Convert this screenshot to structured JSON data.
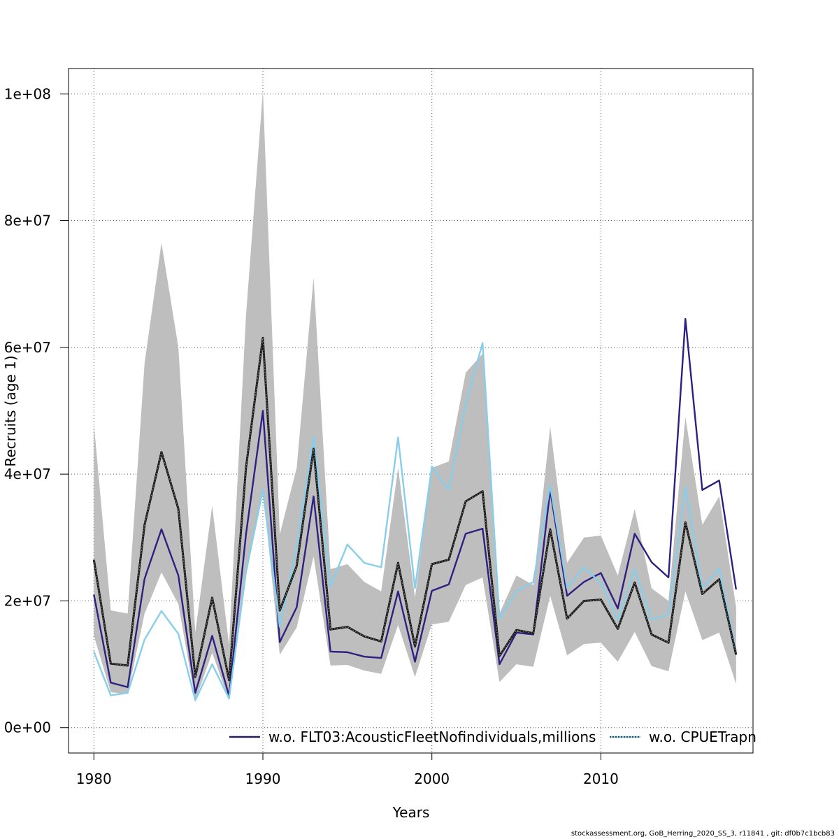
{
  "footer": "stockassessment.org, GoB_Herring_2020_SS_3, r11841 , git: df0b7c1bcb83",
  "colors": {
    "band": "#bebebe",
    "base": "#1a1a1a",
    "series1": "#2e2081",
    "series2": "#87ceeb",
    "grid": "#555555"
  },
  "chart_data": {
    "type": "line",
    "xlabel": "Years",
    "ylabel": "Recruits (age 1)",
    "xlim": [
      1978.5,
      2019
    ],
    "ylim": [
      -4000000,
      104000000
    ],
    "xticks": [
      1980,
      1990,
      2000,
      2010
    ],
    "yticks": [
      0,
      20000000,
      40000000,
      60000000,
      80000000,
      100000000
    ],
    "ytick_labels": [
      "0e+00",
      "2e+07",
      "4e+07",
      "6e+07",
      "8e+07",
      "1e+08"
    ],
    "grid": true,
    "legend_position": "bottom-right",
    "x": [
      1980,
      1981,
      1982,
      1983,
      1984,
      1985,
      1986,
      1987,
      1988,
      1989,
      1990,
      1991,
      1992,
      1993,
      1994,
      1995,
      1996,
      1997,
      1998,
      1999,
      2000,
      2001,
      2002,
      2003,
      2004,
      2005,
      2006,
      2007,
      2008,
      2009,
      2010,
      2011,
      2012,
      2013,
      2014,
      2015,
      2016,
      2017,
      2018
    ],
    "band_upper": [
      48000000,
      18500000,
      18000000,
      57500000,
      76500000,
      60000000,
      15000000,
      35000000,
      13000000,
      65000000,
      100500000,
      30500000,
      41000000,
      71000000,
      25000000,
      25800000,
      23000000,
      21500000,
      41000000,
      20500000,
      41000000,
      42000000,
      56000000,
      59000000,
      18000000,
      24000000,
      22500000,
      47500000,
      26000000,
      30000000,
      30300000,
      24000000,
      34500000,
      22000000,
      20000000,
      49000000,
      32000000,
      36500000,
      19000000
    ],
    "band_lower": [
      14500000,
      5600000,
      5300000,
      18000000,
      24500000,
      19500000,
      4300000,
      11800000,
      4300000,
      25000000,
      37500000,
      11500000,
      15800000,
      27000000,
      9800000,
      9900000,
      9000000,
      8500000,
      16200000,
      8000000,
      16300000,
      16700000,
      22500000,
      23700000,
      7200000,
      10000000,
      9600000,
      20800000,
      11400000,
      13200000,
      13400000,
      10400000,
      15100000,
      9700000,
      8900000,
      21500000,
      13800000,
      15000000,
      6900000
    ],
    "series": [
      {
        "name": "",
        "values": [
          26500000,
          10100000,
          9800000,
          32000000,
          43500000,
          34500000,
          8000000,
          20500000,
          7500000,
          41000000,
          61500000,
          18500000,
          25500000,
          44000000,
          15500000,
          15900000,
          14400000,
          13600000,
          26000000,
          12800000,
          25800000,
          26500000,
          35700000,
          37300000,
          11300000,
          15400000,
          14900000,
          31300000,
          17200000,
          20000000,
          20200000,
          15600000,
          22900000,
          14700000,
          13400000,
          32400000,
          21100000,
          23400000,
          11500000
        ]
      },
      {
        "name": "w.o. FLT03:AcousticFleetNofindividuals,millions",
        "values": [
          21000000,
          7100000,
          6400000,
          23500000,
          31300000,
          24000000,
          5500000,
          14500000,
          5000000,
          30500000,
          50000000,
          13500000,
          19000000,
          36500000,
          12000000,
          11900000,
          11200000,
          11000000,
          21500000,
          10400000,
          21600000,
          22600000,
          30600000,
          31400000,
          10000000,
          15000000,
          14700000,
          37500000,
          20800000,
          23000000,
          24400000,
          18800000,
          30600000,
          26100000,
          23700000,
          64500000,
          37500000,
          39000000,
          21800000
        ]
      },
      {
        "name": "w.o. CPUETrapn",
        "values": [
          12000000,
          5100000,
          5500000,
          13900000,
          18400000,
          14800000,
          4300000,
          10000000,
          4600000,
          24500000,
          37500000,
          15900000,
          28500000,
          46000000,
          22300000,
          28900000,
          26000000,
          25300000,
          45800000,
          22000000,
          41200000,
          37500000,
          51000000,
          60700000,
          17200000,
          21500000,
          23000000,
          38200000,
          22000000,
          25300000,
          22800000,
          17000000,
          25000000,
          17000000,
          17900000,
          38000000,
          22000000,
          25100000,
          12000000
        ]
      }
    ]
  }
}
